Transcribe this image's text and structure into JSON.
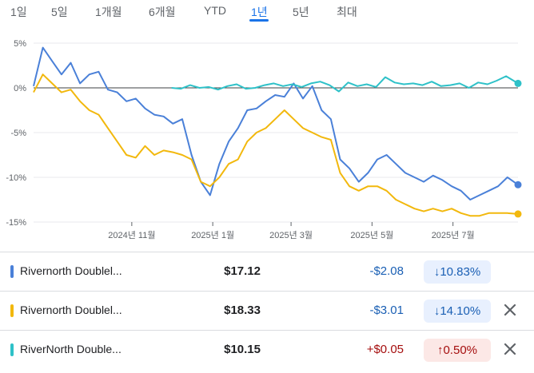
{
  "range_tabs": [
    {
      "label": "1일",
      "active": false
    },
    {
      "label": "5일",
      "active": false
    },
    {
      "label": "1개월",
      "active": false
    },
    {
      "label": "6개월",
      "active": false
    },
    {
      "label": "YTD",
      "active": false
    },
    {
      "label": "1년",
      "active": true
    },
    {
      "label": "5년",
      "active": false
    },
    {
      "label": "최대",
      "active": false
    }
  ],
  "chart_data": {
    "type": "line",
    "ylim": [
      -15,
      5
    ],
    "y_ticks": [
      5,
      0,
      -5,
      -10,
      -15
    ],
    "y_tick_labels": [
      "5%",
      "0%",
      "-5%",
      "-10%",
      "-15%"
    ],
    "x_tick_labels": [
      "2024년 11월",
      "2025년 1월",
      "2025년 3월",
      "2025년 5월",
      "2025년 7월"
    ],
    "grid": true,
    "x_range": [
      "2024-08-19",
      "2025-08-19"
    ],
    "x_ticks": [
      "2024-11-01",
      "2025-01-01",
      "2025-03-01",
      "2025-05-01",
      "2025-07-01"
    ],
    "series": [
      {
        "color": "#4a80d8",
        "x": [
          "2024-08-19",
          "2024-08-26",
          "2024-09-02",
          "2024-09-09",
          "2024-09-16",
          "2024-09-23",
          "2024-09-30",
          "2024-10-07",
          "2024-10-14",
          "2024-10-21",
          "2024-10-28",
          "2024-11-04",
          "2024-11-11",
          "2024-11-18",
          "2024-11-25",
          "2024-12-02",
          "2024-12-09",
          "2024-12-16",
          "2024-12-23",
          "2024-12-30",
          "2025-01-06",
          "2025-01-13",
          "2025-01-20",
          "2025-01-27",
          "2025-02-03",
          "2025-02-10",
          "2025-02-17",
          "2025-02-24",
          "2025-03-03",
          "2025-03-10",
          "2025-03-17",
          "2025-03-24",
          "2025-03-31",
          "2025-04-07",
          "2025-04-14",
          "2025-04-21",
          "2025-04-28",
          "2025-05-05",
          "2025-05-12",
          "2025-05-19",
          "2025-05-26",
          "2025-06-02",
          "2025-06-09",
          "2025-06-16",
          "2025-06-23",
          "2025-06-30",
          "2025-07-07",
          "2025-07-14",
          "2025-07-21",
          "2025-07-28",
          "2025-08-04",
          "2025-08-11",
          "2025-08-19"
        ],
        "values": [
          0.2,
          4.5,
          3.0,
          1.5,
          2.8,
          0.5,
          1.5,
          1.8,
          -0.2,
          -0.5,
          -1.5,
          -1.2,
          -2.3,
          -3.0,
          -3.2,
          -4.0,
          -3.5,
          -7.5,
          -10.5,
          -12.0,
          -8.5,
          -6.0,
          -4.5,
          -2.5,
          -2.3,
          -1.5,
          -0.8,
          -1.0,
          0.5,
          -1.2,
          0.2,
          -2.5,
          -3.5,
          -8.0,
          -9.0,
          -10.5,
          -9.5,
          -8.0,
          -7.5,
          -8.5,
          -9.5,
          -10.0,
          -10.5,
          -9.8,
          -10.3,
          -11.0,
          -11.5,
          -12.5,
          -12.0,
          -11.5,
          -11.0,
          -10.0,
          -10.83
        ]
      },
      {
        "color": "#f2b80d",
        "x": [
          "2024-08-19",
          "2024-08-26",
          "2024-09-02",
          "2024-09-09",
          "2024-09-16",
          "2024-09-23",
          "2024-09-30",
          "2024-10-07",
          "2024-10-14",
          "2024-10-21",
          "2024-10-28",
          "2024-11-04",
          "2024-11-11",
          "2024-11-18",
          "2024-11-25",
          "2024-12-02",
          "2024-12-09",
          "2024-12-16",
          "2024-12-23",
          "2024-12-30",
          "2025-01-06",
          "2025-01-13",
          "2025-01-20",
          "2025-01-27",
          "2025-02-03",
          "2025-02-10",
          "2025-02-17",
          "2025-02-24",
          "2025-03-03",
          "2025-03-10",
          "2025-03-17",
          "2025-03-24",
          "2025-03-31",
          "2025-04-07",
          "2025-04-14",
          "2025-04-21",
          "2025-04-28",
          "2025-05-05",
          "2025-05-12",
          "2025-05-19",
          "2025-05-26",
          "2025-06-02",
          "2025-06-09",
          "2025-06-16",
          "2025-06-23",
          "2025-06-30",
          "2025-07-07",
          "2025-07-14",
          "2025-07-21",
          "2025-07-28",
          "2025-08-04",
          "2025-08-11",
          "2025-08-19"
        ],
        "values": [
          -0.5,
          1.5,
          0.5,
          -0.5,
          -0.2,
          -1.5,
          -2.5,
          -3.0,
          -4.5,
          -6.0,
          -7.5,
          -7.8,
          -6.5,
          -7.5,
          -7.0,
          -7.2,
          -7.5,
          -8.0,
          -10.5,
          -11.0,
          -10.0,
          -8.5,
          -8.0,
          -6.0,
          -5.0,
          -4.5,
          -3.5,
          -2.5,
          -3.5,
          -4.5,
          -5.0,
          -5.5,
          -5.8,
          -9.5,
          -11.0,
          -11.5,
          -11.0,
          -11.0,
          -11.5,
          -12.5,
          -13.0,
          -13.5,
          -13.8,
          -13.5,
          -13.8,
          -13.5,
          -14.0,
          -14.3,
          -14.3,
          -14.0,
          -14.0,
          -14.0,
          -14.1
        ]
      },
      {
        "color": "#2ec1c8",
        "x": [
          "2024-12-01",
          "2024-12-08",
          "2024-12-15",
          "2024-12-22",
          "2024-12-29",
          "2025-01-05",
          "2025-01-12",
          "2025-01-19",
          "2025-01-26",
          "2025-02-02",
          "2025-02-09",
          "2025-02-16",
          "2025-02-23",
          "2025-03-02",
          "2025-03-09",
          "2025-03-16",
          "2025-03-23",
          "2025-03-30",
          "2025-04-06",
          "2025-04-13",
          "2025-04-20",
          "2025-04-27",
          "2025-05-04",
          "2025-05-11",
          "2025-05-18",
          "2025-05-25",
          "2025-06-01",
          "2025-06-08",
          "2025-06-15",
          "2025-06-22",
          "2025-06-29",
          "2025-07-06",
          "2025-07-13",
          "2025-07-20",
          "2025-07-27",
          "2025-08-03",
          "2025-08-10",
          "2025-08-19"
        ],
        "values": [
          0.0,
          -0.1,
          0.3,
          0.0,
          0.1,
          -0.2,
          0.2,
          0.4,
          -0.1,
          0.0,
          0.3,
          0.5,
          0.2,
          0.4,
          0.1,
          0.5,
          0.7,
          0.3,
          -0.4,
          0.6,
          0.2,
          0.4,
          0.1,
          1.2,
          0.6,
          0.4,
          0.5,
          0.3,
          0.7,
          0.2,
          0.3,
          0.5,
          0.0,
          0.6,
          0.4,
          0.8,
          1.3,
          0.5
        ]
      }
    ]
  },
  "rows": [
    {
      "name": "Rivernorth Doublel...",
      "price": "$17.12",
      "change": "-$2.08",
      "pct": "10.83%",
      "direction": "down",
      "color": "#4a80d8",
      "closable": false
    },
    {
      "name": "Rivernorth Doublel...",
      "price": "$18.33",
      "change": "-$3.01",
      "pct": "14.10%",
      "direction": "down",
      "color": "#f2b80d",
      "closable": true
    },
    {
      "name": "RiverNorth Double...",
      "price": "$10.15",
      "change": "+$0.05",
      "pct": "0.50%",
      "direction": "up",
      "color": "#2ec1c8",
      "closable": true
    }
  ],
  "colors": {
    "accent": "#1a73e8",
    "down_text": "#1a5fb4",
    "down_badge_bg": "#e8f0fe",
    "up_text": "#a50e0e",
    "up_badge_bg": "#fce8e6"
  }
}
